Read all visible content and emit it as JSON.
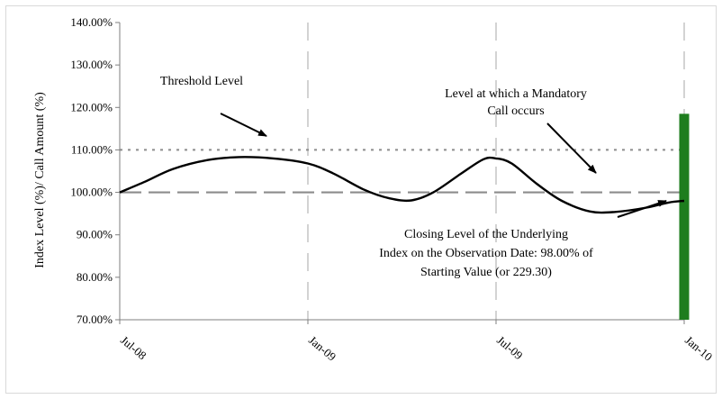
{
  "chart_data": {
    "type": "line",
    "title": "",
    "ylabel": "Index Level (%)/ Call Amount (%)",
    "xlabel": "",
    "ylim": [
      70,
      140
    ],
    "ytick_values": [
      70,
      80,
      90,
      100,
      110,
      120,
      130,
      140
    ],
    "ytick_labels": [
      "70.00%",
      "80.00%",
      "90.00%",
      "100.00%",
      "110.00%",
      "120.00%",
      "130.00%",
      "140.00%"
    ],
    "x_ticks": [
      {
        "label": "Jul-08",
        "month_index": 0
      },
      {
        "label": "Jan-09",
        "month_index": 6
      },
      {
        "label": "Jul-09",
        "month_index": 12
      },
      {
        "label": "Jan-10",
        "month_index": 18
      }
    ],
    "x_range_months": [
      0,
      18
    ],
    "vertical_gridlines": "dashed at each tick",
    "series": [
      {
        "kind": "index-level",
        "color": "#000000",
        "points": [
          {
            "x": 0,
            "y": 100.0
          },
          {
            "x": 0.8,
            "y": 102.5
          },
          {
            "x": 1.7,
            "y": 105.5
          },
          {
            "x": 2.8,
            "y": 107.6
          },
          {
            "x": 3.8,
            "y": 108.3
          },
          {
            "x": 4.9,
            "y": 108.0
          },
          {
            "x": 6.0,
            "y": 106.8
          },
          {
            "x": 6.8,
            "y": 104.5
          },
          {
            "x": 7.8,
            "y": 100.6
          },
          {
            "x": 8.6,
            "y": 98.6
          },
          {
            "x": 9.3,
            "y": 98.1
          },
          {
            "x": 10.0,
            "y": 100.0
          },
          {
            "x": 10.9,
            "y": 104.5
          },
          {
            "x": 11.6,
            "y": 107.8
          },
          {
            "x": 12.0,
            "y": 108.0
          },
          {
            "x": 12.5,
            "y": 106.8
          },
          {
            "x": 13.3,
            "y": 102.0
          },
          {
            "x": 14.1,
            "y": 98.0
          },
          {
            "x": 15.0,
            "y": 95.5
          },
          {
            "x": 15.8,
            "y": 95.4
          },
          {
            "x": 16.8,
            "y": 96.4
          },
          {
            "x": 17.5,
            "y": 97.6
          },
          {
            "x": 18.0,
            "y": 98.0
          }
        ]
      },
      {
        "kind": "threshold-level",
        "color": "#8c8c8c",
        "style": "long-dash",
        "y": 100
      },
      {
        "kind": "mandatory-call-level",
        "color": "#8c8c8c",
        "style": "dotted",
        "y": 110
      },
      {
        "kind": "call-amount-bar",
        "color": "#1e7d1e",
        "x": 18.0,
        "y": 118.5
      }
    ],
    "annotations": [
      {
        "id": "threshold",
        "lines": [
          "Threshold Level"
        ]
      },
      {
        "id": "mandatory",
        "lines": [
          "Level at which a Mandatory",
          "Call occurs"
        ]
      },
      {
        "id": "closing",
        "lines": [
          "Closing Level of the Underlying",
          "Index on the Observation Date: 98.00% of",
          "Starting Value (or 229.30)"
        ]
      }
    ]
  }
}
